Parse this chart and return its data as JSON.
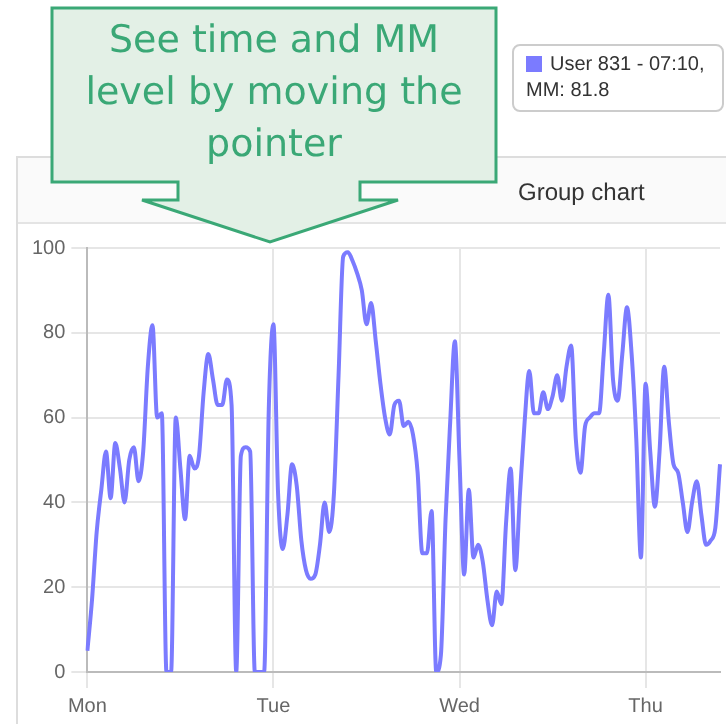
{
  "chart_data": {
    "type": "line",
    "title": "Group chart",
    "annotations": [
      "See time and MM level by moving the pointer",
      "User 831 - 07:10, MM: 81.8"
    ],
    "categories": [
      "Mon",
      null,
      null,
      null,
      null,
      null,
      null,
      null,
      null,
      null,
      null,
      null,
      null,
      null,
      null,
      null,
      null,
      null,
      null,
      null,
      null,
      null,
      null,
      null,
      null,
      null,
      null,
      null,
      null,
      null,
      null,
      null,
      null,
      null,
      null,
      null,
      null,
      null,
      null,
      null,
      "Tue",
      null,
      null,
      null,
      null,
      null,
      null,
      null,
      null,
      null,
      null,
      null,
      null,
      null,
      null,
      null,
      null,
      null,
      null,
      null,
      null,
      null,
      null,
      null,
      null,
      null,
      null,
      null,
      null,
      null,
      null,
      null,
      null,
      null,
      null,
      null,
      null,
      null,
      null,
      null,
      "Wed",
      null,
      null,
      null,
      null,
      null,
      null,
      null,
      null,
      null,
      null,
      null,
      null,
      null,
      null,
      null,
      null,
      null,
      null,
      null,
      null,
      null,
      null,
      null,
      null,
      null,
      null,
      null,
      null,
      null,
      null,
      null,
      null,
      null,
      null,
      null,
      null,
      null,
      null,
      null,
      "Thu",
      null,
      null,
      null,
      null,
      null,
      null,
      null,
      null,
      null,
      null,
      null,
      null,
      null,
      null,
      null,
      null
    ],
    "series": [
      {
        "color": "#7b7bff",
        "values": [
          5,
          17,
          33,
          43,
          52,
          41,
          54,
          48,
          40,
          50,
          53,
          45,
          52,
          72,
          81.8,
          60,
          61,
          0,
          0,
          60,
          48,
          36,
          51,
          48,
          51,
          66,
          75,
          69,
          63,
          63,
          69,
          63,
          0,
          51,
          53,
          52,
          0,
          0,
          0,
          62,
          82,
          42,
          29,
          37,
          49,
          44,
          31,
          24,
          22,
          23,
          30,
          40,
          33,
          42,
          70,
          98,
          99,
          97,
          94,
          90,
          82,
          87,
          78,
          68,
          60,
          56,
          63,
          64,
          58,
          59,
          56,
          47,
          28,
          28,
          38,
          0,
          4,
          36,
          59,
          78,
          50,
          23,
          43,
          27,
          30,
          26,
          17,
          11,
          19,
          16,
          35,
          48,
          24,
          42,
          59,
          71,
          61,
          61,
          66,
          62,
          65,
          70,
          64,
          72,
          77,
          55,
          47,
          58,
          60,
          61,
          61,
          75,
          89,
          69,
          64,
          75,
          86,
          75,
          55,
          27,
          68,
          52,
          39,
          52,
          72,
          59,
          49,
          47,
          40,
          33,
          40,
          45,
          37,
          30,
          31,
          34,
          49
        ]
      }
    ],
    "ylim": [
      0,
      100
    ],
    "yticks": [
      0,
      20,
      40,
      60,
      80,
      100
    ],
    "grid": true,
    "legend": false,
    "marker": "none",
    "line_style": "solid"
  }
}
